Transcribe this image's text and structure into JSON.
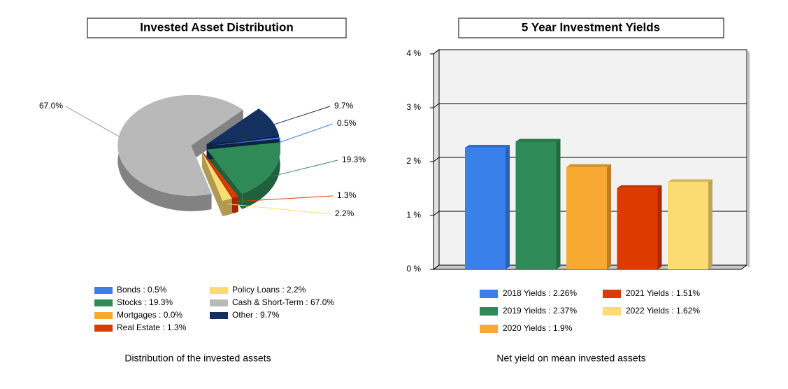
{
  "chart_data": [
    {
      "type": "pie",
      "title": "Invested Asset Distribution",
      "subtitle": "Distribution of the invested assets",
      "categories": [
        "Bonds : 0.5%",
        "Stocks : 19.3%",
        "Mortgages : 0.0%",
        "Real Estate : 1.3%",
        "Policy Loans : 2.2%",
        "Cash & Short-Term : 67.0%",
        "Other : 9.7%"
      ],
      "values": [
        0.5,
        19.3,
        0.0,
        1.3,
        2.2,
        67.0,
        9.7
      ],
      "value_labels": [
        "0.5%",
        "19.3%",
        null,
        "1.3%",
        "2.2%",
        "67.0%",
        "9.7%"
      ],
      "colors": [
        "#3a80ea",
        "#2e8b57",
        "#f8a932",
        "#dd3a00",
        "#fcdb72",
        "#b9b9b9",
        "#14305f"
      ]
    },
    {
      "type": "bar",
      "title": "5 Year Investment Yields",
      "subtitle": "Net yield on mean invested assets",
      "categories": [
        null
      ],
      "series": [
        {
          "name": "2018 Yields : 2.26%",
          "color": "#3a80ea",
          "values": [
            2.26
          ]
        },
        {
          "name": "2019 Yields : 2.37%",
          "color": "#2e8b57",
          "values": [
            2.37
          ]
        },
        {
          "name": "2020 Yields : 1.9%",
          "color": "#f8a932",
          "values": [
            1.9
          ]
        },
        {
          "name": "2021 Yields : 1.51%",
          "color": "#dd3a00",
          "values": [
            1.51
          ]
        },
        {
          "name": "2022 Yields : 1.62%",
          "color": "#fcdb72",
          "values": [
            1.62
          ]
        }
      ],
      "ylim": [
        0,
        4
      ],
      "yticks": [
        {
          "value": 0,
          "label": "0 %"
        },
        {
          "value": 1,
          "label": "1 %"
        },
        {
          "value": 2,
          "label": "2 %"
        },
        {
          "value": 3,
          "label": "3 %"
        },
        {
          "value": 4,
          "label": "4 %"
        }
      ],
      "grid": true
    }
  ]
}
